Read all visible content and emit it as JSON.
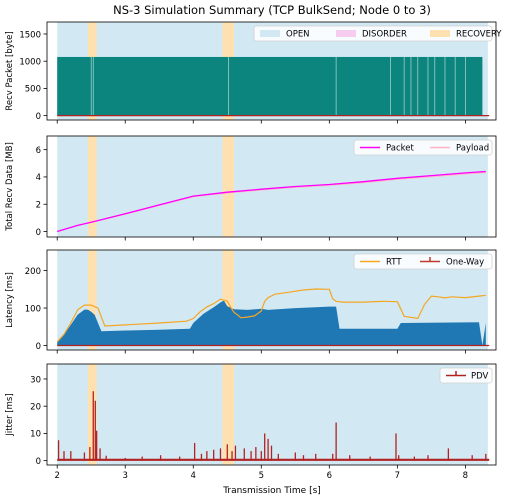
{
  "figure": {
    "title": "NS-3 Simulation Summary (TCP BulkSend; Node 0 to 3)",
    "xlabel": "Transmission Time [s]"
  },
  "colors": {
    "open": "#d2e9f3",
    "disorder": "#f6cdf0",
    "recovery": "#ffe0b0",
    "recv_packet": "#0b857d",
    "packet_line": "#ff00ff",
    "payload_line": "#ffb3c6",
    "rtt": "#f5a623",
    "one_way": "#1f77b4",
    "one_way_legend": "#c0392b",
    "pdv": "#b22222"
  },
  "chart_data": [
    {
      "id": "recv-packet",
      "type": "bar",
      "ylabel": "Recv Packet [byte]",
      "xlim": [
        1.85,
        8.45
      ],
      "ylim": [
        -80,
        1720
      ],
      "yticks": [
        0,
        500,
        1000,
        1500
      ],
      "legend": {
        "placement": "top-right",
        "entries": [
          "OPEN",
          "DISORDER",
          "RECOVERY"
        ]
      },
      "open_range": [
        2.0,
        8.33
      ],
      "recovery_ranges": [
        [
          2.45,
          2.58
        ],
        [
          4.43,
          4.6
        ]
      ],
      "filled_range": [
        2.0,
        8.25
      ],
      "packet_size": 1078,
      "gap_times": [
        2.5,
        2.53,
        4.52,
        6.1,
        6.9,
        7.1,
        7.2,
        7.3,
        7.45,
        7.55,
        7.7,
        7.85,
        8.0
      ]
    },
    {
      "id": "recv-data",
      "type": "line",
      "ylabel": "Total Recv Data [MB]",
      "xlim": [
        1.85,
        8.45
      ],
      "ylim": [
        -0.4,
        7.0
      ],
      "yticks": [
        0,
        2,
        4,
        6
      ],
      "legend": {
        "placement": "top-right",
        "entries": [
          "Packet",
          "Payload"
        ]
      },
      "series": [
        {
          "name": "Packet",
          "x": [
            2.0,
            2.3,
            2.5,
            3.0,
            3.5,
            4.0,
            4.5,
            5.0,
            5.5,
            6.0,
            6.5,
            7.0,
            7.5,
            8.0,
            8.3
          ],
          "y": [
            0.0,
            0.45,
            0.68,
            1.3,
            1.95,
            2.6,
            2.88,
            3.1,
            3.3,
            3.45,
            3.65,
            3.9,
            4.1,
            4.3,
            4.4
          ]
        },
        {
          "name": "Payload",
          "x": [
            2.0,
            2.3,
            2.5,
            3.0,
            3.5,
            4.0,
            4.5,
            5.0,
            5.5,
            6.0,
            6.5,
            7.0,
            7.5,
            8.0,
            8.3
          ],
          "y": [
            0.0,
            0.44,
            0.66,
            1.27,
            1.91,
            2.55,
            2.83,
            3.04,
            3.24,
            3.39,
            3.58,
            3.83,
            4.02,
            4.22,
            4.32
          ]
        }
      ]
    },
    {
      "id": "latency",
      "type": "line",
      "ylabel": "Latency [ms]",
      "xlim": [
        1.85,
        8.45
      ],
      "ylim": [
        -12,
        255
      ],
      "yticks": [
        0,
        100,
        200
      ],
      "legend": {
        "placement": "top-right",
        "entries": [
          "RTT",
          "One-Way"
        ]
      },
      "series": [
        {
          "name": "RTT",
          "x": [
            2.0,
            2.1,
            2.2,
            2.3,
            2.4,
            2.5,
            2.6,
            2.7,
            3.0,
            3.5,
            3.9,
            4.0,
            4.1,
            4.2,
            4.3,
            4.4,
            4.5,
            4.55,
            4.6,
            4.65,
            4.7,
            4.8,
            4.9,
            5.0,
            5.05,
            5.1,
            5.2,
            5.4,
            5.6,
            5.8,
            6.0,
            6.05,
            6.1,
            6.2,
            6.5,
            6.8,
            7.0,
            7.1,
            7.3,
            7.4,
            7.5,
            7.6,
            7.7,
            7.8,
            8.0,
            8.2,
            8.3
          ],
          "y": [
            10,
            30,
            60,
            95,
            108,
            108,
            100,
            52,
            55,
            60,
            65,
            72,
            90,
            103,
            112,
            124,
            118,
            102,
            88,
            82,
            74,
            76,
            79,
            92,
            118,
            128,
            137,
            142,
            148,
            151,
            150,
            125,
            118,
            116,
            116,
            118,
            117,
            78,
            72,
            110,
            132,
            130,
            127,
            130,
            128,
            132,
            134
          ]
        },
        {
          "name": "One-Way",
          "x": [
            2.0,
            2.1,
            2.2,
            2.3,
            2.4,
            2.45,
            2.5,
            2.55,
            2.65,
            3.0,
            3.5,
            3.95,
            4.0,
            4.15,
            4.3,
            4.4,
            4.45,
            4.5,
            4.6,
            4.8,
            5.0,
            5.1,
            5.5,
            6.0,
            6.1,
            6.15,
            6.5,
            7.0,
            7.05,
            8.2,
            8.25,
            8.3
          ],
          "y": [
            8,
            30,
            55,
            82,
            96,
            96,
            90,
            82,
            38,
            40,
            42,
            45,
            60,
            85,
            102,
            115,
            120,
            105,
            97,
            95,
            98,
            95,
            100,
            104,
            104,
            45,
            45,
            45,
            60,
            62,
            0,
            60
          ]
        }
      ]
    },
    {
      "id": "jitter",
      "type": "bar",
      "ylabel": "Jitter [ms]",
      "xlim": [
        1.85,
        8.45
      ],
      "ylim": [
        -1.6,
        35.5
      ],
      "yticks": [
        0,
        10,
        20,
        30
      ],
      "legend": {
        "placement": "top-right",
        "entries": [
          "PDV"
        ]
      },
      "series": [
        {
          "name": "PDV",
          "x": [
            2.02,
            2.1,
            2.2,
            2.4,
            2.48,
            2.53,
            2.56,
            2.58,
            2.63,
            2.72,
            3.0,
            3.25,
            3.52,
            3.8,
            4.02,
            4.12,
            4.2,
            4.3,
            4.4,
            4.5,
            4.57,
            4.62,
            4.75,
            4.85,
            4.92,
            5.0,
            5.05,
            5.1,
            5.15,
            5.25,
            5.5,
            5.62,
            5.8,
            6.05,
            6.1,
            6.3,
            6.6,
            6.98,
            7.02,
            7.25,
            7.45,
            7.75,
            8.1,
            8.3
          ],
          "y": [
            7.5,
            3.5,
            3.5,
            3.0,
            5.0,
            25.5,
            22.0,
            11.0,
            4.5,
            1.8,
            1.0,
            1.5,
            2.0,
            1.5,
            6.5,
            2.5,
            3.5,
            4.0,
            4.5,
            6.0,
            3.5,
            5.5,
            4.5,
            3.5,
            5.0,
            3.5,
            10.0,
            8.0,
            5.5,
            2.5,
            3.0,
            2.0,
            2.5,
            2.5,
            14.0,
            2.0,
            1.5,
            10.0,
            2.0,
            1.5,
            2.0,
            4.5,
            2.0,
            2.5
          ]
        }
      ]
    }
  ]
}
